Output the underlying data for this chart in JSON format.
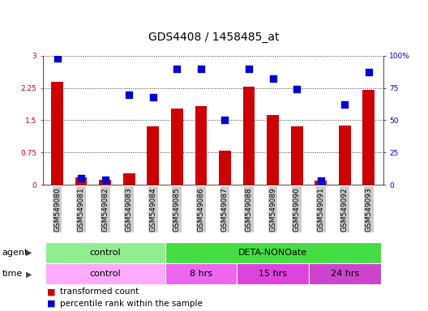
{
  "title": "GDS4408 / 1458485_at",
  "samples": [
    "GSM549080",
    "GSM549081",
    "GSM549082",
    "GSM549083",
    "GSM549084",
    "GSM549085",
    "GSM549086",
    "GSM549087",
    "GSM549088",
    "GSM549089",
    "GSM549090",
    "GSM549091",
    "GSM549092",
    "GSM549093"
  ],
  "transformed_count": [
    2.4,
    0.17,
    0.12,
    0.27,
    1.35,
    1.78,
    1.82,
    0.8,
    2.28,
    1.62,
    1.35,
    0.1,
    1.37,
    2.2
  ],
  "percentile_rank": [
    98,
    5,
    4,
    70,
    68,
    90,
    90,
    50,
    90,
    82,
    74,
    3,
    62,
    87
  ],
  "bar_color": "#cc0000",
  "dot_color": "#0000cc",
  "left_ylim": [
    0,
    3
  ],
  "right_ylim": [
    0,
    100
  ],
  "left_yticks": [
    0,
    0.75,
    1.5,
    2.25,
    3
  ],
  "right_yticks": [
    0,
    25,
    50,
    75,
    100
  ],
  "left_yticklabels": [
    "0",
    "0.75",
    "1.5",
    "2.25",
    "3"
  ],
  "right_yticklabels": [
    "0",
    "25",
    "50",
    "75",
    "100%"
  ],
  "agent_groups": [
    {
      "label": "control",
      "start": 0,
      "end": 4,
      "color": "#90ee90"
    },
    {
      "label": "DETA-NONOate",
      "start": 5,
      "end": 13,
      "color": "#44dd44"
    }
  ],
  "time_groups": [
    {
      "label": "control",
      "start": 0,
      "end": 4,
      "color": "#ffaaff"
    },
    {
      "label": "8 hrs",
      "start": 5,
      "end": 7,
      "color": "#ee66ee"
    },
    {
      "label": "15 hrs",
      "start": 8,
      "end": 10,
      "color": "#dd44dd"
    },
    {
      "label": "24 hrs",
      "start": 11,
      "end": 13,
      "color": "#cc44cc"
    }
  ],
  "legend_items": [
    {
      "label": "transformed count",
      "color": "#cc0000"
    },
    {
      "label": "percentile rank within the sample",
      "color": "#0000cc"
    }
  ],
  "background_color": "#ffffff",
  "grid_color": "#000000",
  "title_fontsize": 10,
  "tick_fontsize": 6.5,
  "label_fontsize": 8,
  "bar_width": 0.5,
  "dot_size": 30
}
